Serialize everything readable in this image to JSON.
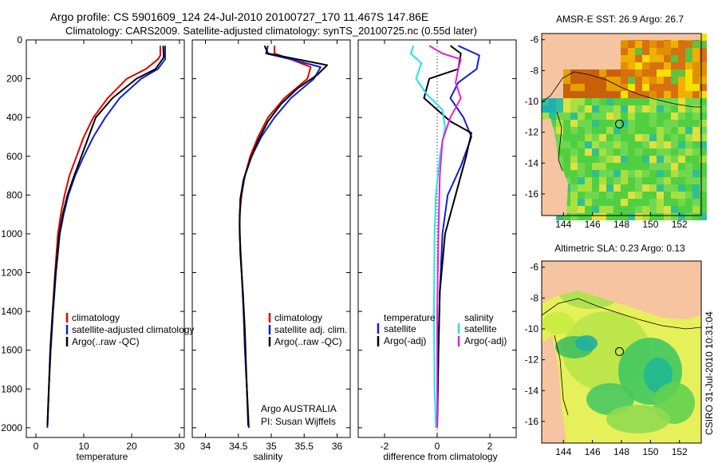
{
  "title_line1": "Argo profile: CS 5901609_124 24-Jul-2010 20100727_170 11.467S 147.86E",
  "title_line2": "Climatology: CARS2009. Satellite-adjusted climatology: synTS_20100725.nc (0.55d later)",
  "side_label": "CSIRO 31-Jul-2010 10:31:04",
  "colors": {
    "red": "#e00000",
    "blue": "#1020d0",
    "black": "#000000",
    "cyan": "#20e0f0",
    "magenta": "#e020e0",
    "land": "#f6c4a0",
    "ocean_sla": "#e6f05a"
  },
  "chart_data": [
    {
      "id": "temp",
      "type": "line",
      "xlabel": "temperature",
      "ylabel": "depth",
      "xlim": [
        -2,
        31
      ],
      "ylim": [
        2050,
        0
      ],
      "xticks": [
        "0",
        "10",
        "20",
        "30"
      ],
      "xtick_values": [
        0,
        10,
        20,
        30
      ],
      "yticks": [
        "0",
        "200",
        "400",
        "600",
        "800",
        "1000",
        "1200",
        "1400",
        "1600",
        "1800",
        "2000"
      ],
      "ytick_values": [
        0,
        200,
        400,
        600,
        800,
        1000,
        1200,
        1400,
        1600,
        1800,
        2000
      ],
      "legend": [
        "climatology",
        "satellite-adjusted climatology",
        "Argo(..raw -QC)"
      ],
      "series": [
        {
          "name": "climatology",
          "color": "red",
          "points": [
            [
              26,
              30
            ],
            [
              26,
              80
            ],
            [
              25.5,
              100
            ],
            [
              23,
              150
            ],
            [
              19,
              200
            ],
            [
              15,
              300
            ],
            [
              12,
              400
            ],
            [
              10,
              500
            ],
            [
              8.5,
              600
            ],
            [
              7,
              700
            ],
            [
              6,
              800
            ],
            [
              5.2,
              900
            ],
            [
              4.6,
              1000
            ],
            [
              4,
              1200
            ],
            [
              3.5,
              1400
            ],
            [
              3,
              1600
            ],
            [
              2.7,
              1800
            ],
            [
              2.4,
              2000
            ]
          ]
        },
        {
          "name": "satellite-adjusted climatology",
          "color": "blue",
          "points": [
            [
              27,
              30
            ],
            [
              27,
              100
            ],
            [
              25.5,
              150
            ],
            [
              22,
              200
            ],
            [
              17.5,
              300
            ],
            [
              14.5,
              400
            ],
            [
              12,
              500
            ],
            [
              10,
              600
            ],
            [
              8.2,
              700
            ],
            [
              6.8,
              800
            ],
            [
              5.8,
              900
            ],
            [
              5,
              1000
            ],
            [
              4.2,
              1200
            ],
            [
              3.6,
              1400
            ],
            [
              3.1,
              1600
            ],
            [
              2.7,
              1800
            ],
            [
              2.4,
              2000
            ]
          ]
        },
        {
          "name": "Argo(..raw -QC)",
          "color": "black",
          "points": [
            [
              26.6,
              30
            ],
            [
              26.7,
              90
            ],
            [
              25,
              150
            ],
            [
              21,
              200
            ],
            [
              16,
              300
            ],
            [
              12.5,
              400
            ],
            [
              11,
              500
            ],
            [
              9.5,
              600
            ],
            [
              8,
              700
            ],
            [
              6.6,
              800
            ],
            [
              5.6,
              900
            ],
            [
              4.9,
              1000
            ],
            [
              4.1,
              1200
            ],
            [
              3.5,
              1400
            ],
            [
              3,
              1600
            ],
            [
              2.7,
              1800
            ],
            [
              2.4,
              1990
            ]
          ]
        }
      ]
    },
    {
      "id": "sal",
      "type": "line",
      "xlabel": "salinity",
      "ylabel": "depth",
      "xlim": [
        33.8,
        36.2
      ],
      "ylim": [
        2050,
        0
      ],
      "xticks": [
        "34",
        "34.5",
        "35",
        "35.5",
        "36"
      ],
      "xtick_values": [
        34,
        34.5,
        35,
        35.5,
        36
      ],
      "legend": [
        "climatology",
        "satellite adj. clim.",
        "Argo(..raw -QC)"
      ],
      "note_lines": [
        "Argo AUSTRALIA",
        "PI: Susan Wijffels"
      ],
      "series": [
        {
          "name": "climatology",
          "color": "red",
          "points": [
            [
              35.05,
              30
            ],
            [
              35.05,
              70
            ],
            [
              35.3,
              100
            ],
            [
              35.6,
              140
            ],
            [
              35.55,
              200
            ],
            [
              35.2,
              300
            ],
            [
              34.95,
              400
            ],
            [
              34.8,
              500
            ],
            [
              34.68,
              600
            ],
            [
              34.6,
              700
            ],
            [
              34.55,
              800
            ],
            [
              34.52,
              900
            ],
            [
              34.52,
              1000
            ],
            [
              34.55,
              1200
            ],
            [
              34.58,
              1400
            ],
            [
              34.6,
              1600
            ],
            [
              34.63,
              1800
            ],
            [
              34.66,
              2000
            ]
          ]
        },
        {
          "name": "satellite adj. clim.",
          "color": "blue",
          "points": [
            [
              34.95,
              30
            ],
            [
              34.92,
              70
            ],
            [
              35.3,
              100
            ],
            [
              35.75,
              140
            ],
            [
              35.65,
              200
            ],
            [
              35.3,
              300
            ],
            [
              35.05,
              400
            ],
            [
              34.85,
              500
            ],
            [
              34.7,
              600
            ],
            [
              34.6,
              700
            ],
            [
              34.54,
              800
            ],
            [
              34.52,
              900
            ],
            [
              34.52,
              1000
            ],
            [
              34.55,
              1200
            ],
            [
              34.58,
              1400
            ],
            [
              34.6,
              1600
            ],
            [
              34.63,
              1800
            ],
            [
              34.66,
              2000
            ]
          ]
        },
        {
          "name": "Argo(..raw -QC)",
          "color": "black",
          "points": [
            [
              34.9,
              30
            ],
            [
              34.95,
              70
            ],
            [
              35.4,
              100
            ],
            [
              35.85,
              130
            ],
            [
              35.7,
              180
            ],
            [
              35.4,
              250
            ],
            [
              35.15,
              330
            ],
            [
              34.95,
              420
            ],
            [
              34.8,
              520
            ],
            [
              34.68,
              620
            ],
            [
              34.58,
              720
            ],
            [
              34.53,
              820
            ],
            [
              34.52,
              950
            ],
            [
              34.53,
              1100
            ],
            [
              34.57,
              1300
            ],
            [
              34.6,
              1500
            ],
            [
              34.62,
              1700
            ],
            [
              34.65,
              1990
            ]
          ]
        }
      ]
    },
    {
      "id": "diff",
      "type": "line",
      "xlabel": "difference from climatology",
      "ylabel": "depth",
      "xlim": [
        -3,
        3
      ],
      "ylim": [
        2050,
        0
      ],
      "xticks": [
        "-2",
        "0",
        "2"
      ],
      "xtick_values": [
        -2,
        0,
        2
      ],
      "legend_titles": [
        "temperature",
        "salinity"
      ],
      "legend": [
        "satellite",
        "Argo(-adj)",
        "satellite",
        "Argo(-adj)"
      ],
      "series": [
        {
          "name": "temperature satellite",
          "color": "blue",
          "points": [
            [
              0.8,
              30
            ],
            [
              1.6,
              80
            ],
            [
              1.5,
              150
            ],
            [
              0.8,
              220
            ],
            [
              0.5,
              300
            ],
            [
              1,
              400
            ],
            [
              1.3,
              500
            ],
            [
              0.9,
              650
            ],
            [
              0.4,
              800
            ],
            [
              0.2,
              1000
            ],
            [
              0.1,
              1300
            ],
            [
              0.05,
              1600
            ],
            [
              0,
              2000
            ]
          ]
        },
        {
          "name": "temperature Argo(-adj)",
          "color": "black",
          "points": [
            [
              0.5,
              30
            ],
            [
              0.9,
              70
            ],
            [
              0.8,
              150
            ],
            [
              -0.3,
              200
            ],
            [
              -0.5,
              300
            ],
            [
              0.5,
              420
            ],
            [
              1.3,
              480
            ],
            [
              1.1,
              600
            ],
            [
              0.7,
              800
            ],
            [
              0.3,
              1000
            ],
            [
              0.1,
              1300
            ],
            [
              0.05,
              1600
            ],
            [
              0,
              2000
            ]
          ]
        },
        {
          "name": "salinity satellite",
          "color": "cyan",
          "points": [
            [
              -0.9,
              30
            ],
            [
              -1,
              70
            ],
            [
              -0.6,
              120
            ],
            [
              -0.8,
              200
            ],
            [
              -0.4,
              280
            ],
            [
              0.2,
              360
            ],
            [
              0.3,
              450
            ],
            [
              0.1,
              600
            ],
            [
              -0.05,
              800
            ],
            [
              -0.1,
              1000
            ],
            [
              -0.12,
              1400
            ],
            [
              -0.1,
              1800
            ],
            [
              -0.05,
              2000
            ]
          ]
        },
        {
          "name": "salinity Argo(-adj)",
          "color": "magenta",
          "points": [
            [
              -0.3,
              30
            ],
            [
              0.2,
              70
            ],
            [
              0.9,
              100
            ],
            [
              0.8,
              150
            ],
            [
              0.7,
              220
            ],
            [
              0.9,
              300
            ],
            [
              0.5,
              400
            ],
            [
              0.2,
              520
            ],
            [
              0.1,
              700
            ],
            [
              0.05,
              1000
            ],
            [
              0,
              1400
            ],
            [
              0,
              2000
            ]
          ]
        }
      ]
    }
  ],
  "maps": [
    {
      "id": "sst",
      "title": "AMSR-E SST: 26.9 Argo: 26.7",
      "xticks": [
        "144",
        "146",
        "148",
        "150",
        "152"
      ],
      "xtick_values": [
        144,
        146,
        148,
        150,
        152
      ],
      "yticks": [
        "-6",
        "-8",
        "-10",
        "-12",
        "-14",
        "-16"
      ],
      "ytick_values": [
        -6,
        -8,
        -10,
        -12,
        -14,
        -16
      ],
      "lon_range": [
        142.5,
        153.5
      ],
      "lat_range": [
        -17.4,
        -5.6
      ],
      "marker": [
        147.86,
        -11.467
      ]
    },
    {
      "id": "sla",
      "title": "Altimetric SLA: 0.23 Argo: 0.13",
      "xticks": [
        "144",
        "146",
        "148",
        "150",
        "152"
      ],
      "xtick_values": [
        144,
        146,
        148,
        150,
        152
      ],
      "yticks": [
        "-6",
        "-8",
        "-10",
        "-12",
        "-14",
        "-16"
      ],
      "ytick_values": [
        -6,
        -8,
        -10,
        -12,
        -14,
        -16
      ],
      "lon_range": [
        142.5,
        153.5
      ],
      "lat_range": [
        -17.4,
        -5.6
      ],
      "marker": [
        147.86,
        -11.467
      ]
    }
  ]
}
